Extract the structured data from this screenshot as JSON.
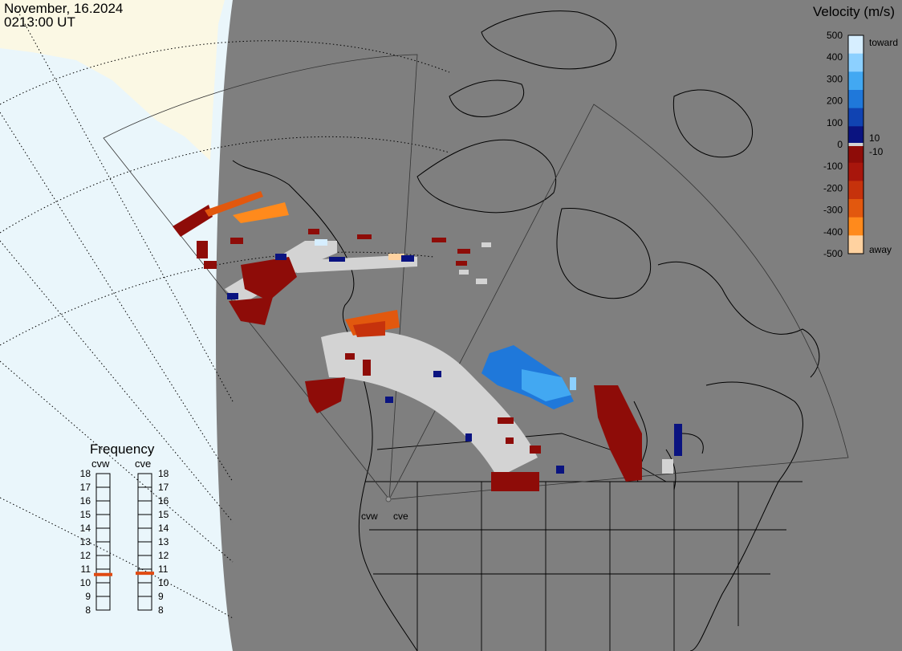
{
  "header": {
    "date": "November, 16.2024",
    "time": "0213:00 UT"
  },
  "velocity_scale": {
    "title": "Velocity (m/s)",
    "ticks": [
      "500",
      "400",
      "300",
      "200",
      "100",
      "0",
      "-100",
      "-200",
      "-300",
      "-400",
      "-500"
    ],
    "label_toward": "toward",
    "label_away": "away",
    "label_pos": "10",
    "label_neg": "-10",
    "colors": [
      "#d6eeff",
      "#8cd0ff",
      "#42a8f2",
      "#1f78da",
      "#1043b2",
      "#0a1380",
      "#8e0c08",
      "#a8160c",
      "#c6320c",
      "#e2580e",
      "#ff8a1c",
      "#ffd2a0"
    ]
  },
  "frequency_panel": {
    "title": "Frequency",
    "radar_left": "cvw",
    "radar_right": "cve",
    "ticks": [
      "18",
      "17",
      "16",
      "15",
      "14",
      "13",
      "12",
      "11",
      "10",
      "9",
      "8"
    ],
    "left_value_mhz": 10.6,
    "right_value_mhz": 10.7,
    "marker_color": "#e04a12"
  },
  "map": {
    "radar_labels": [
      "cvw",
      "cve"
    ],
    "ground_scatter_color": "#d3d3d3",
    "land_color": "#7f7f7f",
    "ocean_color": "#eaf6fb",
    "ice_color": "#fbf8e4"
  }
}
